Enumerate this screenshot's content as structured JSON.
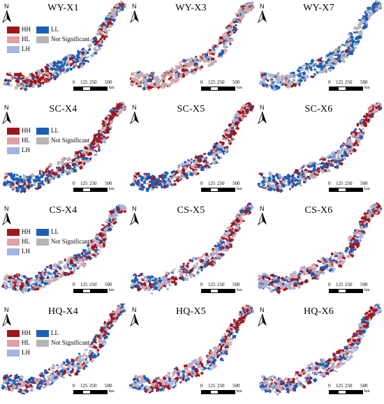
{
  "legend": {
    "HH": {
      "label": "HH",
      "color": "#a0151b"
    },
    "HL": {
      "label": "HL",
      "color": "#e2a0a4"
    },
    "LH": {
      "label": "LH",
      "color": "#a6b3e2"
    },
    "LL": {
      "label": "LL",
      "color": "#1c5eb5"
    },
    "NS": {
      "label": "Not Significant",
      "color": "#b5b5b5"
    }
  },
  "north_label": "N",
  "scale": {
    "ticks": [
      "0",
      "125",
      "250",
      "500"
    ],
    "unit": "km"
  },
  "panels": [
    {
      "title": "WY-X1",
      "has_legend": true,
      "legend_keys": [
        "HH",
        "HL",
        "LH",
        "LL",
        "NS"
      ],
      "mix": {
        "HH": 0.28,
        "HL": 0.04,
        "LH": 0.04,
        "LL": 0.3,
        "NS": 0.34
      }
    },
    {
      "title": "WY-X3",
      "has_legend": false,
      "mix": {
        "HH": 0.2,
        "HL": 0.28,
        "LH": 0.04,
        "LL": 0.14,
        "NS": 0.34
      }
    },
    {
      "title": "WY-X7",
      "has_legend": false,
      "mix": {
        "HH": 0.06,
        "HL": 0.06,
        "LH": 0.2,
        "LL": 0.36,
        "NS": 0.32
      }
    },
    {
      "title": "SC-X4",
      "has_legend": true,
      "legend_keys": [
        "HH",
        "HL",
        "LH",
        "LL",
        "NS"
      ],
      "mix": {
        "HH": 0.3,
        "HL": 0.14,
        "LH": 0.08,
        "LL": 0.3,
        "NS": 0.18
      }
    },
    {
      "title": "SC-X5",
      "has_legend": false,
      "mix": {
        "HH": 0.32,
        "HL": 0.14,
        "LH": 0.08,
        "LL": 0.3,
        "NS": 0.16
      }
    },
    {
      "title": "SC-X6",
      "has_legend": false,
      "mix": {
        "HH": 0.26,
        "HL": 0.18,
        "LH": 0.14,
        "LL": 0.26,
        "NS": 0.16
      }
    },
    {
      "title": "CS-X4",
      "has_legend": true,
      "legend_keys": [
        "HH",
        "HL",
        "LH",
        "LL",
        "NS"
      ],
      "mix": {
        "HH": 0.24,
        "HL": 0.2,
        "LH": 0.2,
        "LL": 0.22,
        "NS": 0.14
      }
    },
    {
      "title": "CS-X5",
      "has_legend": false,
      "mix": {
        "HH": 0.24,
        "HL": 0.2,
        "LH": 0.2,
        "LL": 0.22,
        "NS": 0.14
      }
    },
    {
      "title": "CS-X6",
      "has_legend": false,
      "mix": {
        "HH": 0.26,
        "HL": 0.2,
        "LH": 0.18,
        "LL": 0.22,
        "NS": 0.14
      }
    },
    {
      "title": "HQ-X4",
      "has_legend": true,
      "legend_keys": [
        "HH",
        "HL",
        "LH",
        "LL",
        "NS"
      ],
      "mix": {
        "HH": 0.24,
        "HL": 0.2,
        "LH": 0.2,
        "LL": 0.22,
        "NS": 0.14
      }
    },
    {
      "title": "HQ-X5",
      "has_legend": false,
      "mix": {
        "HH": 0.26,
        "HL": 0.2,
        "LH": 0.18,
        "LL": 0.22,
        "NS": 0.14
      }
    },
    {
      "title": "HQ-X6",
      "has_legend": false,
      "mix": {
        "HH": 0.26,
        "HL": 0.22,
        "LH": 0.18,
        "LL": 0.2,
        "NS": 0.14
      }
    }
  ]
}
